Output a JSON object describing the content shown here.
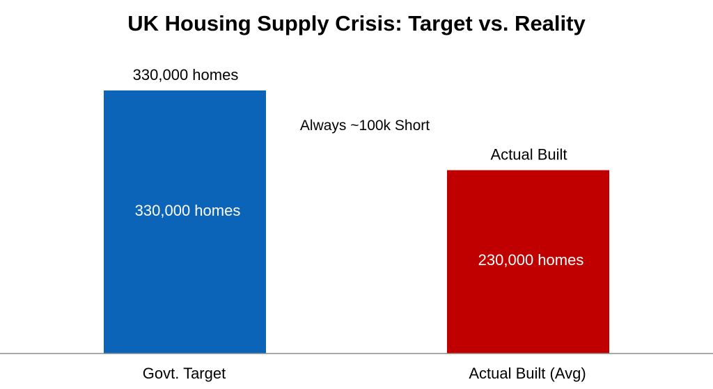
{
  "chart_data": {
    "type": "bar",
    "title": "UK Housing Supply Crisis: Target vs. Reality",
    "categories": [
      "Govt. Target",
      "Actual Built (Avg)"
    ],
    "values": [
      330000,
      230000
    ],
    "bar_top_labels": [
      "330,000 homes",
      "Actual Built"
    ],
    "bar_inner_labels": [
      "330,000 homes",
      "230,000 homes"
    ],
    "annotation": "Always ~100k Short",
    "colors": [
      "#0b64b8",
      "#c00000"
    ],
    "xlabel": "",
    "ylabel": "",
    "ylim": [
      0,
      330000
    ],
    "grid": false,
    "legend": "none"
  }
}
